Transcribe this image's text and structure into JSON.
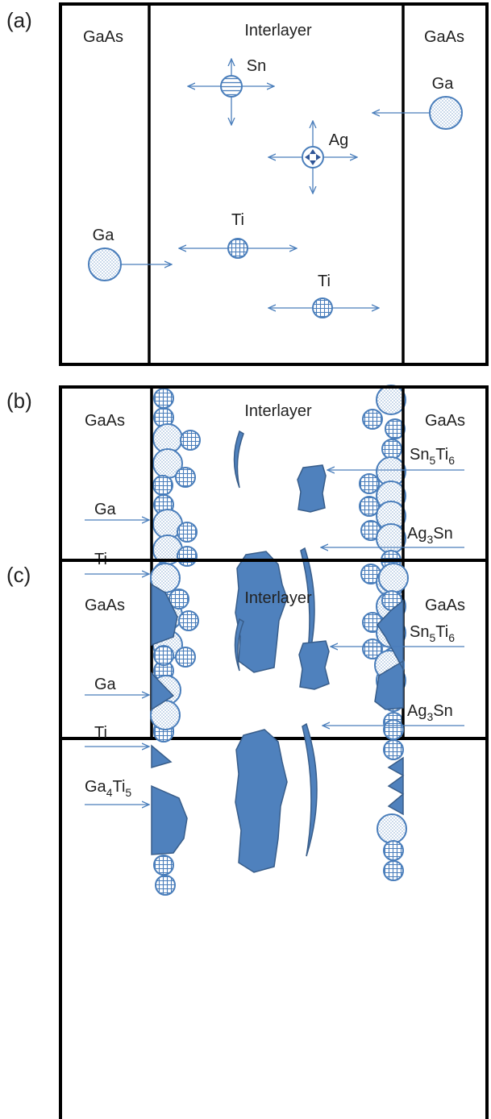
{
  "panels": [
    {
      "label": "(a)",
      "left": "GaAs",
      "middle": "Interlayer",
      "right": "GaAs",
      "atoms": [
        "Sn",
        "Ga",
        "Ag",
        "Ga",
        "Ti",
        "Ti"
      ]
    },
    {
      "label": "(b)",
      "left": "GaAs",
      "middle": "Interlayer",
      "right": "GaAs",
      "phases": [
        [
          {
            "base": "Sn",
            "sub": "5"
          },
          {
            "base": "Ti",
            "sub": "6"
          }
        ],
        [
          {
            "base": "Ag",
            "sub": "3"
          },
          {
            "base": "Sn",
            "sub": ""
          }
        ]
      ],
      "interface": [
        "Ga",
        "Ti"
      ]
    },
    {
      "label": "(c)",
      "left": "GaAs",
      "middle": "Interlayer",
      "right": "GaAs",
      "phases": [
        [
          {
            "base": "Sn",
            "sub": "5"
          },
          {
            "base": "Ti",
            "sub": "6"
          }
        ],
        [
          {
            "base": "Ag",
            "sub": "3"
          },
          {
            "base": "Sn",
            "sub": ""
          }
        ]
      ],
      "interface": [
        "Ga",
        "Ti"
      ],
      "compound": [
        {
          "base": "Ga",
          "sub": "4"
        },
        {
          "base": "Ti",
          "sub": "5"
        }
      ]
    }
  ]
}
